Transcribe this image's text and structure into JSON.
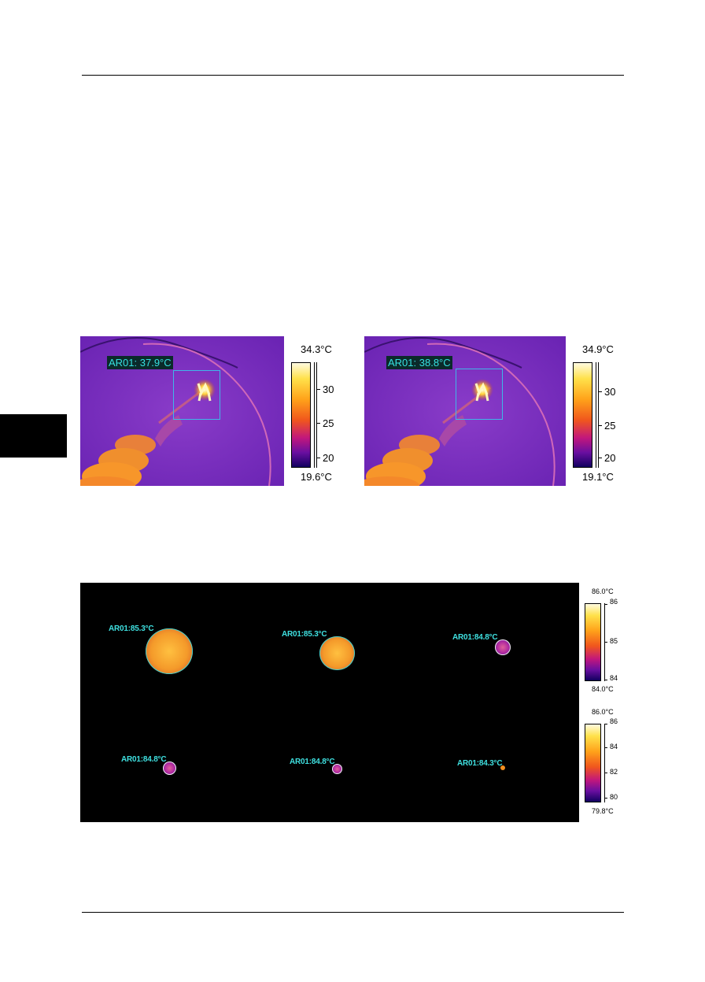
{
  "figure1": {
    "left_image": {
      "roi_label": "AR01: 37.9°C",
      "scale_max": "34.3°C",
      "scale_min": "19.6°C",
      "ticks": [
        "30",
        "25",
        "20"
      ]
    },
    "right_image": {
      "roi_label": "AR01: 38.8°C",
      "scale_max": "34.9°C",
      "scale_min": "19.1°C",
      "ticks": [
        "30",
        "25",
        "20"
      ]
    }
  },
  "figure2": {
    "row1": {
      "labels": [
        "AR01:85.3°C",
        "AR01:85.3°C",
        "AR01:84.8°C"
      ],
      "scale_max": "86.0°C",
      "scale_min": "84.0°C",
      "ticks": [
        "86",
        "85",
        "84"
      ]
    },
    "row2": {
      "labels": [
        "AR01:84.8°C",
        "AR01:84.8°C",
        "AR01:84.3°C"
      ],
      "scale_max": "86.0°C",
      "scale_min": "79.8°C",
      "ticks": [
        "86",
        "84",
        "82",
        "80"
      ]
    }
  }
}
